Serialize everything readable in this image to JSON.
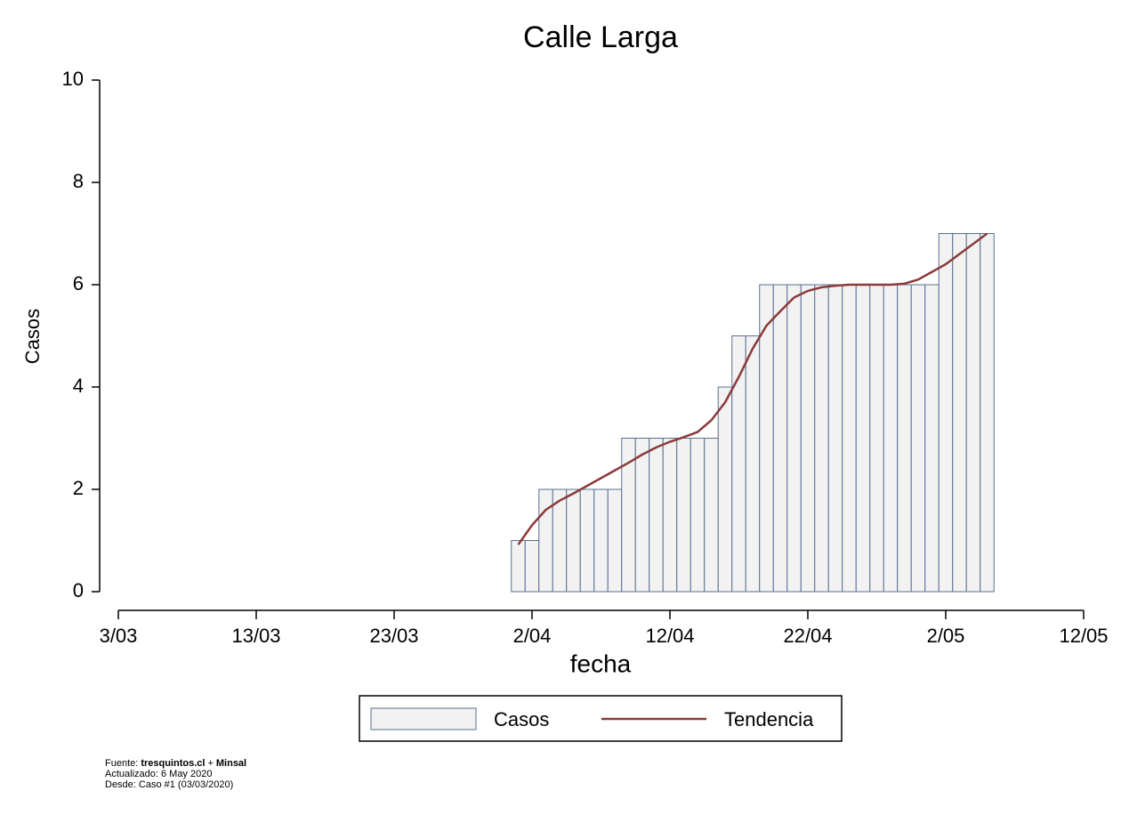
{
  "chart_data": {
    "type": "bar",
    "title": "Calle Larga",
    "x_label": "fecha",
    "y_label": "Casos",
    "x": [
      "1/04",
      "2/04",
      "3/04",
      "4/04",
      "5/04",
      "6/04",
      "7/04",
      "8/04",
      "9/04",
      "10/04",
      "11/04",
      "12/04",
      "13/04",
      "14/04",
      "15/04",
      "16/04",
      "17/04",
      "18/04",
      "19/04",
      "20/04",
      "21/04",
      "22/04",
      "23/04",
      "24/04",
      "25/04",
      "26/04",
      "27/04",
      "28/04",
      "29/04",
      "30/04",
      "1/05",
      "2/05",
      "3/05",
      "4/05",
      "5/05"
    ],
    "series": [
      {
        "name": "Casos",
        "type": "bar",
        "color": "#f2f2f2",
        "edge_color": "#5a6f93",
        "values": [
          1,
          1,
          2,
          2,
          2,
          2,
          2,
          2,
          3,
          3,
          3,
          3,
          3,
          3,
          3,
          4,
          5,
          5,
          6,
          6,
          6,
          6,
          6,
          6,
          6,
          6,
          6,
          6,
          6,
          6,
          6,
          7,
          7,
          7,
          7
        ]
      },
      {
        "name": "Tendencia",
        "type": "line",
        "color": "#8b3a3a",
        "values": [
          0.92,
          1.3,
          1.6,
          1.78,
          1.92,
          2.07,
          2.22,
          2.37,
          2.52,
          2.68,
          2.82,
          2.93,
          3.02,
          3.12,
          3.35,
          3.7,
          4.2,
          4.75,
          5.2,
          5.48,
          5.75,
          5.88,
          5.95,
          5.98,
          6.0,
          6.0,
          6.0,
          6.0,
          6.02,
          6.1,
          6.25,
          6.4,
          6.6,
          6.8,
          7.0
        ]
      }
    ],
    "xlim": [
      "3/03",
      "12/05"
    ],
    "xticks": [
      "3/03",
      "13/03",
      "23/03",
      "2/04",
      "12/04",
      "22/04",
      "2/05",
      "12/05"
    ],
    "ylim": [
      0,
      10
    ],
    "yticks": [
      0,
      2,
      4,
      6,
      8,
      10
    ],
    "grid": false,
    "legend": "bottom",
    "footnote": [
      [
        "Fuente:",
        "tresquintos.cl",
        "+",
        "Minsal"
      ],
      [
        "Actualizado: 6 May 2020"
      ],
      [
        "Desde: Caso #1   (03/03/2020)"
      ]
    ]
  }
}
